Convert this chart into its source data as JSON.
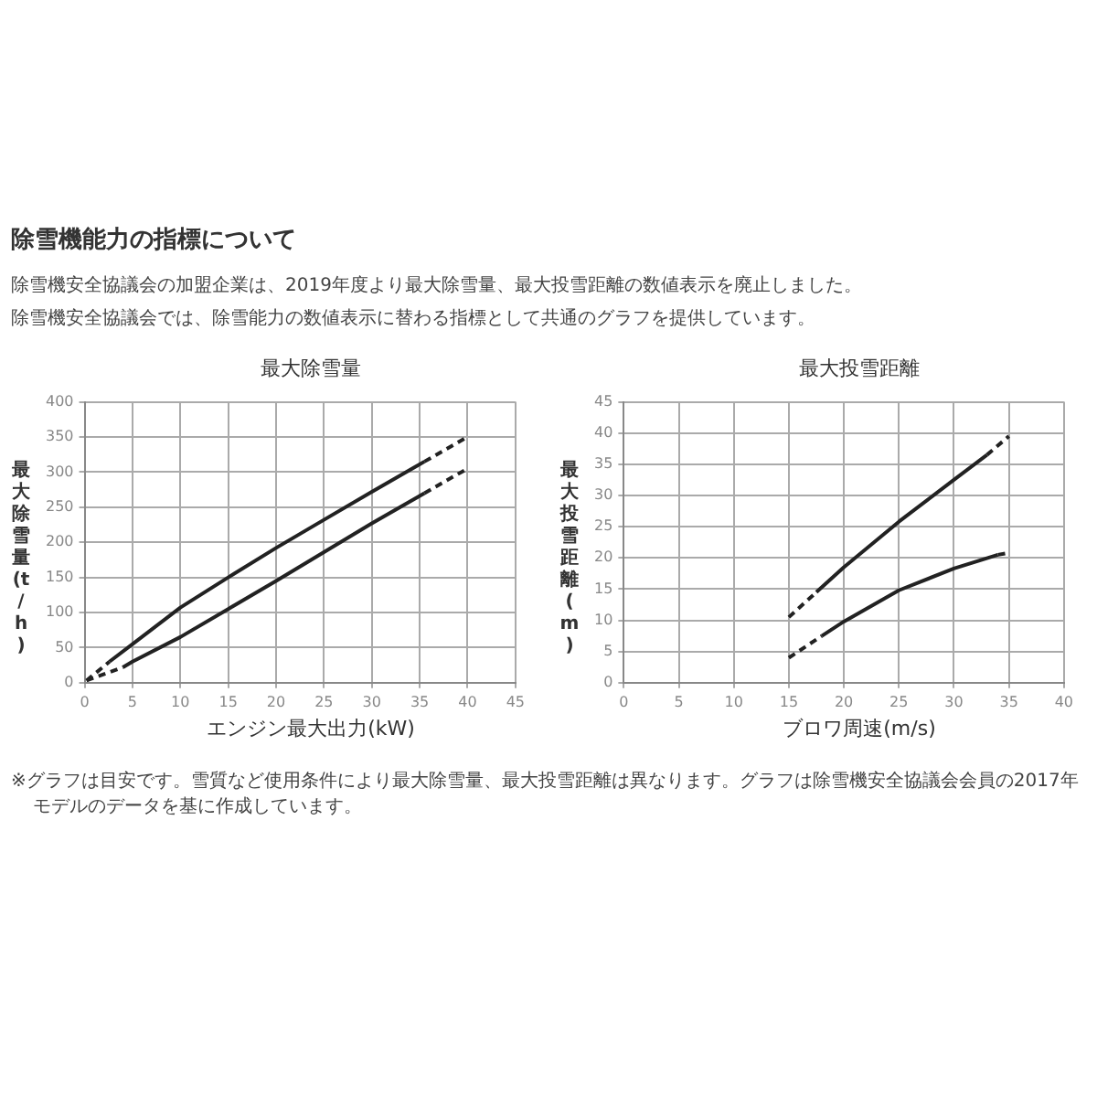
{
  "chart_data": [
    {
      "type": "other",
      "title": "除雪機能力の指標について",
      "annotations": [
        "除雪機安全協議会の加盟企業は、2019年度より最大除雪量、最大投雪距離の数値表示を廃止しました。",
        "除雪機安全協議会では、除雪能力の数値表示に替わる指標として共通のグラフを提供しています。"
      ]
    },
    {
      "type": "line",
      "title": "最大除雪量",
      "xlabel": "エンジン最大出力(kW)",
      "ylabel": "最大除雪量(t/h)",
      "xlim": [
        0,
        45
      ],
      "xticks": [
        0,
        5,
        10,
        15,
        20,
        25,
        30,
        35,
        40,
        45
      ],
      "ylim": [
        0,
        400
      ],
      "yticks": [
        0,
        50,
        100,
        150,
        200,
        250,
        300,
        350,
        400
      ],
      "grid": true,
      "legend": false,
      "marker": "none",
      "series": [
        {
          "color": "#222222",
          "line_style": "dashed",
          "x": [
            0.2,
            2.6
          ],
          "values": [
            3,
            30
          ]
        },
        {
          "color": "#222222",
          "line_style": "solid",
          "x": [
            2.6,
            5,
            10,
            15,
            20,
            25,
            30,
            35.5
          ],
          "values": [
            30,
            55,
            107,
            150,
            192,
            232,
            272,
            315
          ]
        },
        {
          "color": "#222222",
          "line_style": "dashed",
          "x": [
            35.5,
            40
          ],
          "values": [
            315,
            350
          ]
        },
        {
          "color": "#222222",
          "line_style": "dashed",
          "x": [
            0.2,
            4
          ],
          "values": [
            3,
            22
          ]
        },
        {
          "color": "#222222",
          "line_style": "solid",
          "x": [
            4,
            5,
            10,
            15,
            20,
            25,
            30,
            35.5
          ],
          "values": [
            22,
            30,
            65,
            105,
            145,
            186,
            227,
            270
          ]
        },
        {
          "color": "#222222",
          "line_style": "dashed",
          "x": [
            35.5,
            40
          ],
          "values": [
            270,
            305
          ]
        }
      ]
    },
    {
      "type": "line",
      "title": "最大投雪距離",
      "xlabel": "ブロワ周速(m/s)",
      "ylabel": "最大投雪距離(m)",
      "xlim": [
        0,
        40
      ],
      "xticks": [
        0,
        5,
        10,
        15,
        20,
        25,
        30,
        35,
        40
      ],
      "ylim": [
        0,
        45
      ],
      "yticks": [
        0,
        5,
        10,
        15,
        20,
        25,
        30,
        35,
        40,
        45
      ],
      "grid": true,
      "legend": false,
      "marker": "none",
      "series": [
        {
          "color": "#222222",
          "line_style": "dashed",
          "x": [
            15,
            17.5
          ],
          "values": [
            10.5,
            14.5
          ]
        },
        {
          "color": "#222222",
          "line_style": "solid",
          "x": [
            17.5,
            20,
            25,
            30,
            33
          ],
          "values": [
            14.5,
            18.5,
            25.8,
            32.5,
            36.5
          ]
        },
        {
          "color": "#222222",
          "line_style": "dashed",
          "x": [
            33,
            35
          ],
          "values": [
            36.5,
            39.5
          ]
        },
        {
          "color": "#222222",
          "line_style": "dashed",
          "x": [
            15,
            18
          ],
          "values": [
            4,
            7.5
          ]
        },
        {
          "color": "#222222",
          "line_style": "solid",
          "x": [
            18,
            20,
            25,
            30,
            34
          ],
          "values": [
            7.5,
            9.8,
            14.8,
            18.3,
            20.5
          ]
        },
        {
          "color": "#222222",
          "line_style": "dashed",
          "x": [
            34,
            35
          ],
          "values": [
            20.5,
            20.8
          ]
        }
      ]
    },
    {
      "type": "other",
      "annotations": [
        "※グラフは目安です。雪質など使用条件により最大除雪量、最大投雪距離は異なります。グラフは除雪機安全協議会会員の2017年モデルのデータを基に作成しています。"
      ]
    }
  ]
}
